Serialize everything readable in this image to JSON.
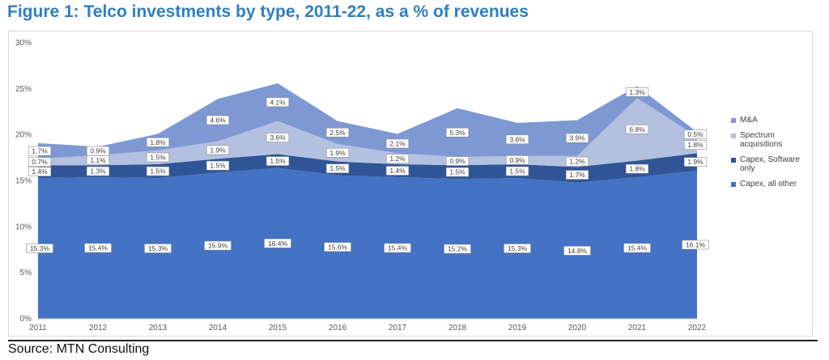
{
  "figure": {
    "title": "Figure 1: Telco investments by type, 2011-22, as a % of revenues",
    "source": "Source: MTN Consulting"
  },
  "chart_data": {
    "type": "area",
    "stacked": true,
    "categories": [
      "2011",
      "2012",
      "2013",
      "2014",
      "2015",
      "2016",
      "2017",
      "2018",
      "2019",
      "2020",
      "2021",
      "2022"
    ],
    "series": [
      {
        "name": "Capex, all other",
        "color": "#4472c4",
        "values": [
          15.3,
          15.4,
          15.3,
          15.9,
          16.4,
          15.6,
          15.4,
          15.2,
          15.3,
          14.8,
          15.4,
          16.1
        ]
      },
      {
        "name": "Capex, Software only",
        "color": "#2f5597",
        "values": [
          1.4,
          1.3,
          1.5,
          1.5,
          1.5,
          1.5,
          1.4,
          1.5,
          1.5,
          1.7,
          1.8,
          1.9
        ]
      },
      {
        "name": "Spectrum acquisitions",
        "color": "#b4c0e0",
        "values": [
          0.7,
          1.1,
          1.5,
          1.9,
          3.6,
          1.9,
          1.2,
          0.9,
          0.9,
          1.2,
          6.8,
          1.8
        ]
      },
      {
        "name": "M&A",
        "color": "#7e98d3",
        "values": [
          1.7,
          0.9,
          1.8,
          4.6,
          4.1,
          2.5,
          2.1,
          5.3,
          3.6,
          3.9,
          1.3,
          0.5
        ]
      }
    ],
    "data_labels": [
      [
        "15.3%",
        "15.4%",
        "15.3%",
        "15.9%",
        "16.4%",
        "15.6%",
        "15.4%",
        "15.2%",
        "15.3%",
        "14.8%",
        "15.4%",
        "16.1%"
      ],
      [
        "1.4%",
        "1.3%",
        "1.5%",
        "1.5%",
        "1.5%",
        "1.5%",
        "1.4%",
        "1.5%",
        "1.5%",
        "1.7%",
        "1.8%",
        "1.9%"
      ],
      [
        "0.7%",
        "1.1%",
        "1.5%",
        "1.9%",
        "3.6%",
        "1.9%",
        "1.2%",
        "0.9%",
        "0.9%",
        "1.2%",
        "6.8%",
        "1.8%"
      ],
      [
        "1.7%",
        "0.9%",
        "1.8%",
        "4.6%",
        "4.1%",
        "2.5%",
        "2.1%",
        "5.3%",
        "3.6%",
        "3.9%",
        "1.3%",
        "0.5%"
      ]
    ],
    "legend_order": [
      "M&A",
      "Spectrum acquisitions",
      "Capex, Software only",
      "Capex, all other"
    ],
    "yticks": [
      0,
      5,
      10,
      15,
      20,
      25,
      30
    ],
    "ytick_labels": [
      "0%",
      "5%",
      "10%",
      "15%",
      "20%",
      "25%",
      "30%"
    ],
    "ylim": [
      0,
      30
    ],
    "grid": false,
    "legend_position": "right"
  }
}
